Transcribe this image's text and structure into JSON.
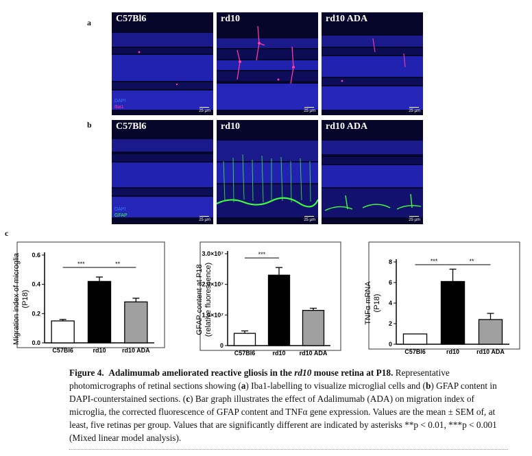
{
  "labels": {
    "a": "a",
    "b": "b",
    "c": "c"
  },
  "row_a": {
    "panels": [
      "C57Bl6",
      "rd10",
      "rd10 ADA"
    ],
    "legend1": "DAPI",
    "legend2": "Iba1",
    "scalebar": "25 µm",
    "legend2_color": "#ff3aa0"
  },
  "row_b": {
    "panels": [
      "C57Bl6",
      "rd10",
      "rd10 ADA"
    ],
    "legend1": "DAPI",
    "legend2": "GFAP",
    "scalebar": "25 µm",
    "legend2_color": "#3cff3c"
  },
  "chart_data": [
    {
      "type": "bar",
      "categories": [
        "C57Bl6",
        "rd10",
        "rd10 ADA"
      ],
      "values": [
        0.15,
        0.42,
        0.28
      ],
      "errors": [
        0.01,
        0.03,
        0.025
      ],
      "fills": [
        "#ffffff",
        "#000000",
        "#a0a0a0"
      ],
      "ylabel_lines": [
        "Migration index of microglia",
        "(P18)"
      ],
      "yticks": [
        "0.0",
        "0.2",
        "0.4",
        "0.6"
      ],
      "ylim": [
        0,
        0.6
      ],
      "significance": [
        {
          "from": 0,
          "to": 1,
          "label": "***"
        },
        {
          "from": 1,
          "to": 2,
          "label": "**"
        }
      ]
    },
    {
      "type": "bar",
      "categories": [
        "C57Bl6",
        "rd10",
        "rd10 ADA"
      ],
      "values": [
        4000000,
        23000000,
        11500000
      ],
      "errors": [
        800000,
        2500000,
        700000
      ],
      "fills": [
        "#ffffff",
        "#000000",
        "#a0a0a0"
      ],
      "ylabel_lines": [
        "GFAP content at P18",
        "(relative fluorescence)"
      ],
      "yticks": [
        "0",
        "1.0×10⁷",
        "2.0×10⁷",
        "3.0×10⁷"
      ],
      "ylim": [
        0,
        30000000
      ],
      "significance": [
        {
          "from": 0,
          "to": 1,
          "label": "***"
        }
      ]
    },
    {
      "type": "bar",
      "categories": [
        "C57Bl6",
        "rd10",
        "rd10 ADA"
      ],
      "values": [
        1.0,
        6.1,
        2.4
      ],
      "errors": [
        0,
        1.2,
        0.6
      ],
      "fills": [
        "#ffffff",
        "#000000",
        "#a0a0a0"
      ],
      "ylabel_lines": [
        "TNFα mRNA",
        "(P18)"
      ],
      "yticks": [
        "0",
        "2",
        "4",
        "6",
        "8"
      ],
      "ylim": [
        0,
        8
      ],
      "significance": [
        {
          "from": 0,
          "to": 1,
          "label": "***"
        },
        {
          "from": 1,
          "to": 2,
          "label": "**"
        }
      ]
    }
  ],
  "caption": {
    "fig": "Figure 4.",
    "title_pre": "Adalimumab ameliorated reactive gliosis in the ",
    "title_it": "rd10",
    "title_post": " mouse retina at P18.",
    "t1": " Representative photomicrographs of retinal sections showing (",
    "a": "a",
    "t2": ") Iba1-labelling to visualize microglial cells and (",
    "b": "b",
    "t3": ") GFAP content in DAPI-counterstained sections. (",
    "c": "c",
    "t4": ") Bar graph illustrates the effect of Adalimumab (ADA) on migration index of microglia, the corrected fluorescence of GFAP content and TNFα gene expression. Values are the mean ± SEM of, at least, five retinas per group. Values that are significantly different are indicated by asterisks **p < 0.01, ***p < 0.001 (Mixed linear model analysis)."
  }
}
